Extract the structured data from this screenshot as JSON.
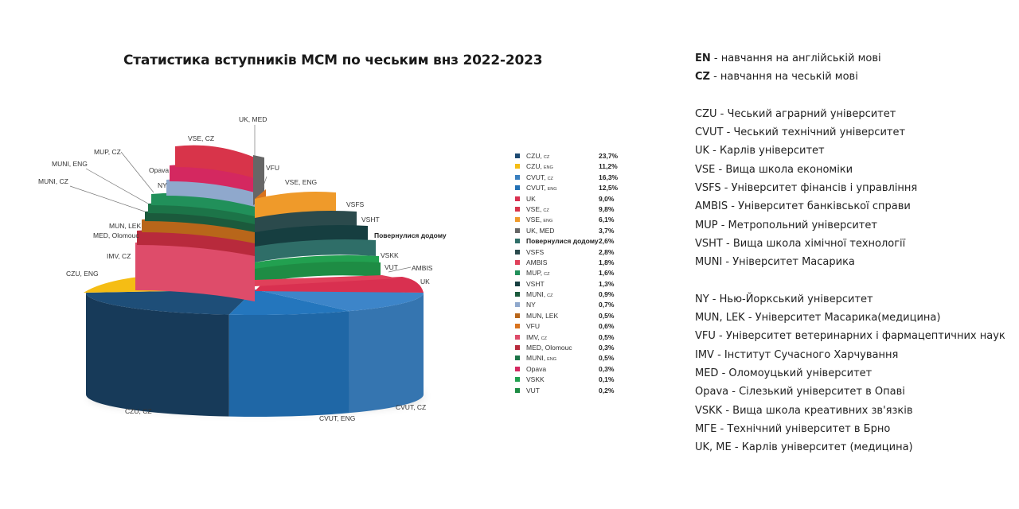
{
  "chart_data": {
    "type": "pie",
    "title": "Статистика вступників МСМ по чеським внз 2022-2023",
    "legend_position": "right",
    "slices": [
      {
        "label": "CZU, CZ",
        "legend_name": "CZU,",
        "legend_sub": "CZ",
        "value_text": "23,7%",
        "value": 23.7,
        "color": "#1d4a72"
      },
      {
        "label": "CZU, ENG",
        "legend_name": "CZU,",
        "legend_sub": "ENG",
        "value_text": "11,2%",
        "value": 11.2,
        "color": "#f5bd14"
      },
      {
        "label": "CVUT, CZ",
        "legend_name": "CVUT,",
        "legend_sub": "CZ",
        "value_text": "16,3%",
        "value": 16.3,
        "color": "#3a7fbf"
      },
      {
        "label": "CVUT, ENG",
        "legend_name": "CVUT,",
        "legend_sub": "ENG",
        "value_text": "12,5%",
        "value": 12.5,
        "color": "#2270b4"
      },
      {
        "label": "UK",
        "legend_name": "UK",
        "legend_sub": "",
        "value_text": "9,0%",
        "value": 9.0,
        "color": "#d93050"
      },
      {
        "label": "VSE, CZ",
        "legend_name": "VSE,",
        "legend_sub": "CZ",
        "value_text": "9,8%",
        "value": 9.8,
        "color": "#d8344a"
      },
      {
        "label": "VSE, ENG",
        "legend_name": "VSE,",
        "legend_sub": "ENG",
        "value_text": "6,1%",
        "value": 6.1,
        "color": "#ef9a2a"
      },
      {
        "label": "UK, MED",
        "legend_name": "UK, MED",
        "legend_sub": "",
        "value_text": "3,7%",
        "value": 3.7,
        "color": "#666666"
      },
      {
        "label": "Повернулися додому",
        "legend_name": "Повернулися додому",
        "legend_sub": "",
        "value_text": "2,6%",
        "value": 2.6,
        "color": "#2f6e68",
        "bold": true
      },
      {
        "label": "VSFS",
        "legend_name": "VSFS",
        "legend_sub": "",
        "value_text": "2,8%",
        "value": 2.8,
        "color": "#2b4a4c"
      },
      {
        "label": "AMBIS",
        "legend_name": "AMBIS",
        "legend_sub": "",
        "value_text": "1,8%",
        "value": 1.8,
        "color": "#e0405a"
      },
      {
        "label": "MUP, CZ",
        "legend_name": "MUP,",
        "legend_sub": "CZ",
        "value_text": "1,6%",
        "value": 1.6,
        "color": "#21905a"
      },
      {
        "label": "VSHT",
        "legend_name": "VSHT",
        "legend_sub": "",
        "value_text": "1,3%",
        "value": 1.3,
        "color": "#163e40"
      },
      {
        "label": "MUNI, CZ",
        "legend_name": "MUNI,",
        "legend_sub": "CZ",
        "value_text": "0,9%",
        "value": 0.9,
        "color": "#1b5a3c"
      },
      {
        "label": "NY",
        "legend_name": "NY",
        "legend_sub": "",
        "value_text": "0,7%",
        "value": 0.7,
        "color": "#8fa8cc"
      },
      {
        "label": "MUN, LEK",
        "legend_name": "MUN, LEK",
        "legend_sub": "",
        "value_text": "0,5%",
        "value": 0.5,
        "color": "#b8661a"
      },
      {
        "label": "VFU",
        "legend_name": "VFU",
        "legend_sub": "",
        "value_text": "0,6%",
        "value": 0.6,
        "color": "#d9731e"
      },
      {
        "label": "IMV, CZ",
        "legend_name": "IMV,",
        "legend_sub": "CZ",
        "value_text": "0,5%",
        "value": 0.5,
        "color": "#de4c6a"
      },
      {
        "label": "MED, Olomouc",
        "legend_name": "MED, Olomouc",
        "legend_sub": "",
        "value_text": "0,3%",
        "value": 0.3,
        "color": "#b82a3c"
      },
      {
        "label": "MUNI, ENG",
        "legend_name": "MUNI,",
        "legend_sub": "ENG",
        "value_text": "0,5%",
        "value": 0.5,
        "color": "#1c7448"
      },
      {
        "label": "Opava",
        "legend_name": "Opava",
        "legend_sub": "",
        "value_text": "0,3%",
        "value": 0.3,
        "color": "#d42860"
      },
      {
        "label": "VSKK",
        "legend_name": "VSKK",
        "legend_sub": "",
        "value_text": "0,1%",
        "value": 0.1,
        "color": "#22a050"
      },
      {
        "label": "VUT",
        "legend_name": "VUT",
        "legend_sub": "",
        "value_text": "0,2%",
        "value": 0.2,
        "color": "#1e8c44"
      }
    ]
  },
  "notes": [
    {
      "key": "EN",
      "text": " - навчання на англійській мові",
      "bold_key": true
    },
    {
      "key": "CZ",
      "text": " - навчання на чеській мові",
      "bold_key": true
    },
    null,
    {
      "key": "CZU",
      "text": " - Чеський аграрний університет"
    },
    {
      "key": "CVUT",
      "text": " - Чеський технічний університет"
    },
    {
      "key": "UK",
      "text": " - Карлів університет"
    },
    {
      "key": "VSE",
      "text": " - Вища школа економіки"
    },
    {
      "key": "VSFS",
      "text": " - Університет фінансів і управління"
    },
    {
      "key": "AMBIS",
      "text": " - Університет  банківської справи"
    },
    {
      "key": "MUP",
      "text": " - Метропольний університет"
    },
    {
      "key": "VSHT",
      "text": " - Вища школа хімічної технології"
    },
    {
      "key": "MUNI",
      "text": " - Університет Масарика"
    },
    null,
    {
      "key": "NY",
      "text": " - Нью-Йоркський університет"
    },
    {
      "key": "MUN, LEK",
      "text": " - Університет Масарика(медицина)"
    },
    {
      "key": "VFU",
      "text": " - Університет ветеринарних і фармацептичних наук"
    },
    {
      "key": "IMV",
      "text": " - Інститут Сучасного Харчування"
    },
    {
      "key": "MED",
      "text": " - Оломоуцький університет"
    },
    {
      "key": "Opava",
      "text": " - Сілезький університет в Опаві"
    },
    {
      "key": "VSKK",
      "text": " - Вища школа креативних зв'язків"
    },
    {
      "key": "МГЕ",
      "text": " - Технічний університет в Брно"
    },
    {
      "key": "UK, ME",
      "text": " - Карлів університет (медицина)"
    }
  ]
}
